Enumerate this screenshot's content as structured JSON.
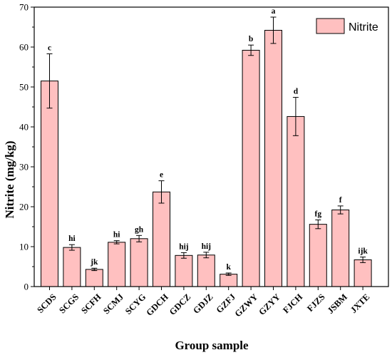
{
  "chart_data": {
    "type": "bar",
    "xlabel": "Group sample",
    "ylabel": "Nitrite (mg/kg)",
    "ylim": [
      0,
      70
    ],
    "yticks": [
      0,
      10,
      20,
      30,
      40,
      50,
      60,
      70
    ],
    "legend_position": "top-right",
    "grid": false,
    "bar_color": "#FFC0C0",
    "bar_edge_color": "#000000",
    "categories": [
      "SCDS",
      "SCGS",
      "SCFH",
      "SCMJ",
      "SCYG",
      "GDCH",
      "GDCZ",
      "GDJZ",
      "GZFJ",
      "GZWY",
      "GZYY",
      "FJCH",
      "FJZS",
      "JSBM",
      "JXTE"
    ],
    "series": [
      {
        "name": "Nitrite",
        "values": [
          51.5,
          9.8,
          4.3,
          11.1,
          12.0,
          23.7,
          7.8,
          7.9,
          3.1,
          59.2,
          64.2,
          42.6,
          15.6,
          19.2,
          6.7
        ],
        "errors": [
          6.8,
          0.7,
          0.3,
          0.4,
          0.8,
          2.8,
          0.7,
          0.7,
          0.3,
          1.3,
          3.3,
          4.8,
          1.1,
          1.0,
          0.7
        ],
        "labels": [
          "c",
          "hi",
          "jk",
          "hi",
          "gh",
          "e",
          "hij",
          "hij",
          "k",
          "b",
          "a",
          "d",
          "fg",
          "f",
          "ijk"
        ]
      }
    ]
  }
}
